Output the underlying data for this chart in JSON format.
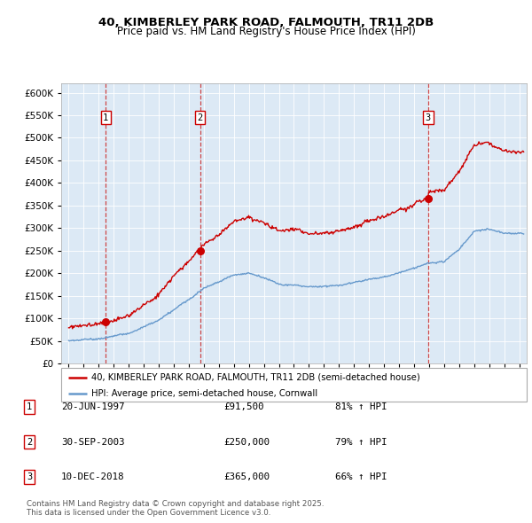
{
  "title_line1": "40, KIMBERLEY PARK ROAD, FALMOUTH, TR11 2DB",
  "title_line2": "Price paid vs. HM Land Registry's House Price Index (HPI)",
  "bg_color": "#dce9f5",
  "sale_dates": [
    1997.47,
    2003.75,
    2018.94
  ],
  "sale_prices": [
    91500,
    250000,
    365000
  ],
  "sale_labels": [
    "1",
    "2",
    "3"
  ],
  "red_line_color": "#cc0000",
  "blue_line_color": "#6699cc",
  "dashed_line_color": "#cc3333",
  "legend_label_red": "40, KIMBERLEY PARK ROAD, FALMOUTH, TR11 2DB (semi-detached house)",
  "legend_label_blue": "HPI: Average price, semi-detached house, Cornwall",
  "table_entries": [
    {
      "num": "1",
      "date": "20-JUN-1997",
      "price": "£91,500",
      "hpi": "81% ↑ HPI"
    },
    {
      "num": "2",
      "date": "30-SEP-2003",
      "price": "£250,000",
      "hpi": "79% ↑ HPI"
    },
    {
      "num": "3",
      "date": "10-DEC-2018",
      "price": "£365,000",
      "hpi": "66% ↑ HPI"
    }
  ],
  "footer": "Contains HM Land Registry data © Crown copyright and database right 2025.\nThis data is licensed under the Open Government Licence v3.0.",
  "ylim": [
    0,
    620000
  ],
  "xlim": [
    1994.5,
    2025.5
  ]
}
